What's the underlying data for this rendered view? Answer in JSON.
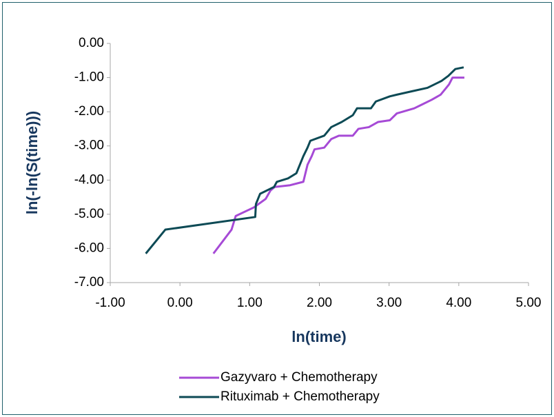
{
  "chart_data": {
    "type": "line",
    "x_label": "ln(time)",
    "y_label": "ln(-ln(S(time)))",
    "xlim": [
      -1,
      5
    ],
    "ylim": [
      -7,
      0
    ],
    "xticks": [
      {
        "value": -1,
        "label": "-1.00"
      },
      {
        "value": 0,
        "label": "0.00"
      },
      {
        "value": 1,
        "label": "1.00"
      },
      {
        "value": 2,
        "label": "2.00"
      },
      {
        "value": 3,
        "label": "3.00"
      },
      {
        "value": 4,
        "label": "4.00"
      },
      {
        "value": 5,
        "label": "5.00"
      }
    ],
    "yticks": [
      {
        "value": 0,
        "label": "0.00"
      },
      {
        "value": -1,
        "label": "-1.00"
      },
      {
        "value": -2,
        "label": "-2.00"
      },
      {
        "value": -3,
        "label": "-3.00"
      },
      {
        "value": -4,
        "label": "-4.00"
      },
      {
        "value": -5,
        "label": "-5.00"
      },
      {
        "value": -6,
        "label": "-6.00"
      },
      {
        "value": -7,
        "label": "-7.00"
      }
    ],
    "grid": false,
    "series": [
      {
        "name": "Gazyvaro + Chemotherapy",
        "color": "#a64ad6",
        "x": [
          0.48,
          0.74,
          0.8,
          1.06,
          1.23,
          1.3,
          1.36,
          1.58,
          1.77,
          1.83,
          1.89,
          1.93,
          2.07,
          2.17,
          2.28,
          2.48,
          2.56,
          2.71,
          2.84,
          3.01,
          3.11,
          3.36,
          3.46,
          3.61,
          3.74,
          3.86,
          3.91,
          4.08
        ],
        "values": [
          -6.15,
          -5.45,
          -5.05,
          -4.8,
          -4.55,
          -4.3,
          -4.2,
          -4.15,
          -4.05,
          -3.55,
          -3.3,
          -3.1,
          -3.05,
          -2.8,
          -2.7,
          -2.7,
          -2.5,
          -2.45,
          -2.3,
          -2.25,
          -2.05,
          -1.9,
          -1.8,
          -1.65,
          -1.5,
          -1.2,
          -1.0,
          -1.0
        ]
      },
      {
        "name": "Rituximab + Chemotherapy",
        "color": "#0d4a55",
        "x": [
          -0.49,
          -0.21,
          1.08,
          1.09,
          1.15,
          1.35,
          1.39,
          1.55,
          1.67,
          1.71,
          1.77,
          1.83,
          1.87,
          2.07,
          2.17,
          2.32,
          2.48,
          2.54,
          2.74,
          2.81,
          3.01,
          3.11,
          3.33,
          3.55,
          3.75,
          3.85,
          3.95,
          4.07
        ],
        "values": [
          -6.15,
          -5.45,
          -5.08,
          -4.7,
          -4.4,
          -4.2,
          -4.05,
          -3.95,
          -3.8,
          -3.6,
          -3.3,
          -3.05,
          -2.85,
          -2.7,
          -2.45,
          -2.3,
          -2.1,
          -1.9,
          -1.9,
          -1.7,
          -1.55,
          -1.5,
          -1.4,
          -1.3,
          -1.1,
          -0.95,
          -0.75,
          -0.7
        ]
      }
    ]
  }
}
